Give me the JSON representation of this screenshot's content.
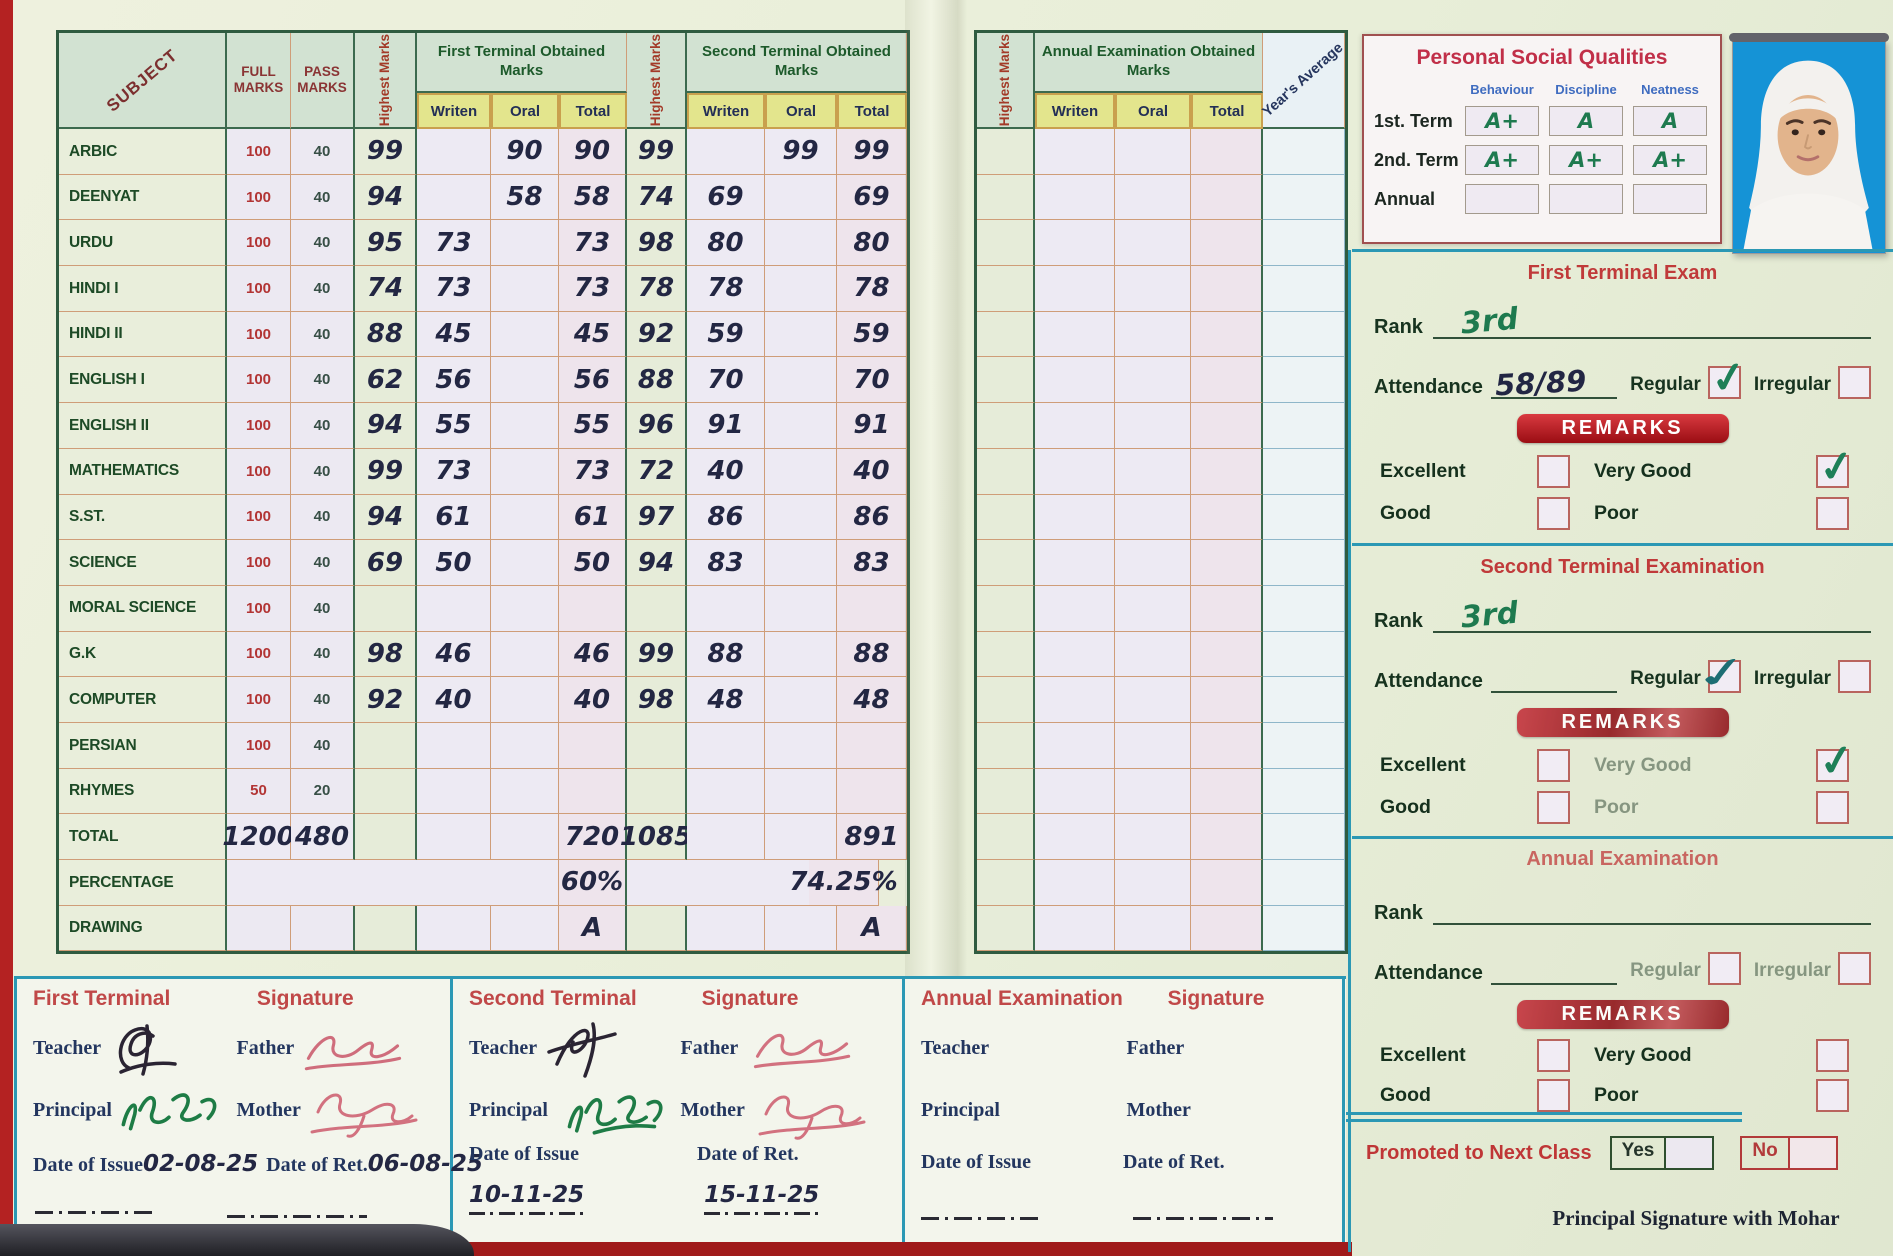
{
  "colors": {
    "page_green": "#e9eedb",
    "header_green": "#d2e2d2",
    "badge_red": "#b5121b",
    "title_red": "#c03a3a",
    "ink": "#232743",
    "green_ink": "#1e7a4f",
    "photo_blue": "#1593d6"
  },
  "marks_table": {
    "headers": {
      "subject": "SUBJECT",
      "full": "FULL MARKS",
      "pass": "PASS MARKS",
      "highest": "Highest Marks",
      "first_group": "First Terminal Obtained Marks",
      "second_group": "Second Terminal Obtained Marks",
      "written": "Writen",
      "oral": "Oral",
      "total": "Total"
    },
    "rows": [
      {
        "name": "ARBIC",
        "full": "100",
        "pass": "40",
        "fh": "99",
        "fw": "",
        "fo": "90",
        "ft": "90",
        "sh": "99",
        "sw": "",
        "so": "99",
        "st": "99",
        "type": "subject"
      },
      {
        "name": "DEENYAT",
        "full": "100",
        "pass": "40",
        "fh": "94",
        "fw": "",
        "fo": "58",
        "ft": "58",
        "sh": "74",
        "sw": "69",
        "so": "",
        "st": "69",
        "type": "subject"
      },
      {
        "name": "URDU",
        "full": "100",
        "pass": "40",
        "fh": "95",
        "fw": "73",
        "fo": "",
        "ft": "73",
        "sh": "98",
        "sw": "80",
        "so": "",
        "st": "80",
        "type": "subject"
      },
      {
        "name": "HINDI I",
        "full": "100",
        "pass": "40",
        "fh": "74",
        "fw": "73",
        "fo": "",
        "ft": "73",
        "sh": "78",
        "sw": "78",
        "so": "",
        "st": "78",
        "type": "subject"
      },
      {
        "name": "HINDI II",
        "full": "100",
        "pass": "40",
        "fh": "88",
        "fw": "45",
        "fo": "",
        "ft": "45",
        "sh": "92",
        "sw": "59",
        "so": "",
        "st": "59",
        "type": "subject"
      },
      {
        "name": "ENGLISH I",
        "full": "100",
        "pass": "40",
        "fh": "62",
        "fw": "56",
        "fo": "",
        "ft": "56",
        "sh": "88",
        "sw": "70",
        "so": "",
        "st": "70",
        "type": "subject"
      },
      {
        "name": "ENGLISH II",
        "full": "100",
        "pass": "40",
        "fh": "94",
        "fw": "55",
        "fo": "",
        "ft": "55",
        "sh": "96",
        "sw": "91",
        "so": "",
        "st": "91",
        "type": "subject"
      },
      {
        "name": "MATHEMATICS",
        "full": "100",
        "pass": "40",
        "fh": "99",
        "fw": "73",
        "fo": "",
        "ft": "73",
        "sh": "72",
        "sw": "40",
        "so": "",
        "st": "40",
        "type": "subject"
      },
      {
        "name": "S.ST.",
        "full": "100",
        "pass": "40",
        "fh": "94",
        "fw": "61",
        "fo": "",
        "ft": "61",
        "sh": "97",
        "sw": "86",
        "so": "",
        "st": "86",
        "type": "subject"
      },
      {
        "name": "SCIENCE",
        "full": "100",
        "pass": "40",
        "fh": "69",
        "fw": "50",
        "fo": "",
        "ft": "50",
        "sh": "94",
        "sw": "83",
        "so": "",
        "st": "83",
        "type": "subject"
      },
      {
        "name": "MORAL SCIENCE",
        "full": "100",
        "pass": "40",
        "fh": "",
        "fw": "",
        "fo": "",
        "ft": "",
        "sh": "",
        "sw": "",
        "so": "",
        "st": "",
        "type": "subject"
      },
      {
        "name": "G.K",
        "full": "100",
        "pass": "40",
        "fh": "98",
        "fw": "46",
        "fo": "",
        "ft": "46",
        "sh": "99",
        "sw": "88",
        "so": "",
        "st": "88",
        "type": "subject"
      },
      {
        "name": "COMPUTER",
        "full": "100",
        "pass": "40",
        "fh": "92",
        "fw": "40",
        "fo": "",
        "ft": "40",
        "sh": "98",
        "sw": "48",
        "so": "",
        "st": "48",
        "type": "subject"
      },
      {
        "name": "PERSIAN",
        "full": "100",
        "pass": "40",
        "fh": "",
        "fw": "",
        "fo": "",
        "ft": "",
        "sh": "",
        "sw": "",
        "so": "",
        "st": "",
        "type": "subject"
      },
      {
        "name": "RHYMES",
        "full": "50",
        "pass": "20",
        "fh": "",
        "fw": "",
        "fo": "",
        "ft": "",
        "sh": "",
        "sw": "",
        "so": "",
        "st": "",
        "type": "subject"
      },
      {
        "name": "TOTAL",
        "full": "1200",
        "pass": "480",
        "fh": "",
        "fw": "",
        "fo": "",
        "ft": "720",
        "sh": "1085",
        "sw": "",
        "so": "",
        "st": "891",
        "type": "total"
      },
      {
        "name": "PERCENTAGE",
        "full": "",
        "pass": "",
        "fh": "",
        "fw": "",
        "fo": "",
        "ft": "60%",
        "sh": "",
        "sw": "",
        "so": "",
        "st": "74.25%",
        "type": "percentage"
      },
      {
        "name": "DRAWING",
        "full": "",
        "pass": "",
        "fh": "",
        "fw": "",
        "fo": "",
        "ft": "A",
        "sh": "",
        "sw": "",
        "so": "",
        "st": "A",
        "type": "subject"
      }
    ]
  },
  "annual_table": {
    "highest": "Highest Marks",
    "group": "Annual Examination Obtained Marks",
    "written": "Writen",
    "oral": "Oral",
    "total": "Total",
    "years_average": "Year's Average"
  },
  "psq": {
    "title": "Personal Social Qualities",
    "columns": [
      "Behaviour",
      "Discipline",
      "Neatness"
    ],
    "rows": [
      {
        "label": "1st. Term",
        "values": [
          "A+",
          "A",
          "A"
        ]
      },
      {
        "label": "2nd. Term",
        "values": [
          "A+",
          "A+",
          "A+"
        ]
      },
      {
        "label": "Annual",
        "values": [
          "",
          "",
          ""
        ]
      }
    ]
  },
  "labels": {
    "rank": "Rank",
    "attendance": "Attendance",
    "regular": "Regular",
    "irregular": "Irregular",
    "remarks": "REMARKS",
    "excellent": "Excellent",
    "very_good": "Very Good",
    "good": "Good",
    "poor": "Poor"
  },
  "sections": [
    {
      "title": "First Terminal Exam",
      "rank_value": "3rd",
      "attendance_value": "58/89",
      "regular_checked": true,
      "irregular_checked": false,
      "excellent_checked": false,
      "very_good_checked": true,
      "good_checked": false,
      "poor_checked": false
    },
    {
      "title": "Second Terminal Examination",
      "rank_value": "3rd",
      "attendance_value": "",
      "regular_checked": true,
      "irregular_checked": false,
      "excellent_checked": false,
      "very_good_checked": true,
      "good_checked": false,
      "poor_checked": false
    },
    {
      "title": "Annual Examination",
      "rank_value": "",
      "attendance_value": "",
      "regular_checked": false,
      "irregular_checked": false,
      "excellent_checked": false,
      "very_good_checked": false,
      "good_checked": false,
      "poor_checked": false
    }
  ],
  "promotion": {
    "label": "Promoted to Next Class",
    "yes_label": "Yes",
    "no_label": "No"
  },
  "footer": {
    "principal_signature": "Principal Signature with Mohar"
  },
  "sig_blocks": [
    {
      "title": "First Terminal",
      "signature_label": "Signature",
      "teacher_label": "Teacher",
      "father_label": "Father",
      "principal_label": "Principal",
      "mother_label": "Mother",
      "date_issue_label": "Date of Issue",
      "date_issue_value": "02-08-25",
      "date_ret_label": "Date of Ret.",
      "date_ret_value": "06-08-25"
    },
    {
      "title": "Second Terminal",
      "signature_label": "Signature",
      "teacher_label": "Teacher",
      "father_label": "Father",
      "principal_label": "Principal",
      "mother_label": "Mother",
      "date_issue_label": "Date of Issue",
      "date_issue_value": "10-11-25",
      "date_ret_label": "Date of Ret.",
      "date_ret_value": "15-11-25"
    },
    {
      "title": "Annual Examination",
      "signature_label": "Signature",
      "teacher_label": "Teacher",
      "father_label": "Father",
      "principal_label": "Principal",
      "mother_label": "Mother",
      "date_issue_label": "Date of Issue",
      "date_issue_value": "",
      "date_ret_label": "Date of Ret.",
      "date_ret_value": ""
    }
  ]
}
